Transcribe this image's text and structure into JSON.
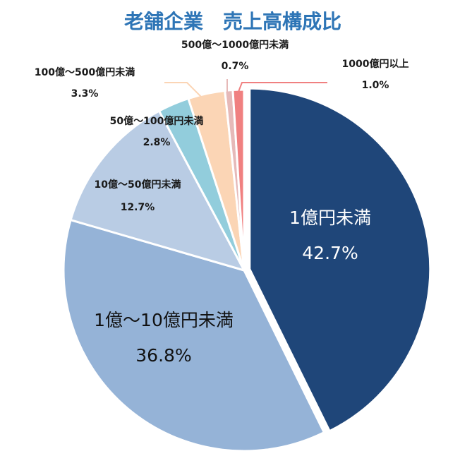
{
  "chart_data": {
    "type": "pie",
    "title": "老舗企業　売上高構成比",
    "slices": [
      {
        "label": "1億円未満",
        "value": 42.7,
        "value_text": "42.7%",
        "color": "#1f4679"
      },
      {
        "label": "1億～10億円未満",
        "value": 36.8,
        "value_text": "36.8%",
        "color": "#95b3d7"
      },
      {
        "label": "10億～50億円未満",
        "value": 12.7,
        "value_text": "12.7%",
        "color": "#b9cce4"
      },
      {
        "label": "50億～100億円未満",
        "value": 2.8,
        "value_text": "2.8%",
        "color": "#92cddc"
      },
      {
        "label": "100億～500億円未満",
        "value": 3.3,
        "value_text": "3.3%",
        "color": "#fbd5b5"
      },
      {
        "label": "500億～1000億円未満",
        "value": 0.7,
        "value_text": "0.7%",
        "color": "#e6b9b8"
      },
      {
        "label": "1000億円以上",
        "value": 1.0,
        "value_text": "1.0%",
        "color": "#f08080"
      }
    ]
  },
  "colors": {
    "title": "#2e75b6",
    "inner_label_dark": "#ffffff",
    "inner_label_light": "#111111"
  }
}
